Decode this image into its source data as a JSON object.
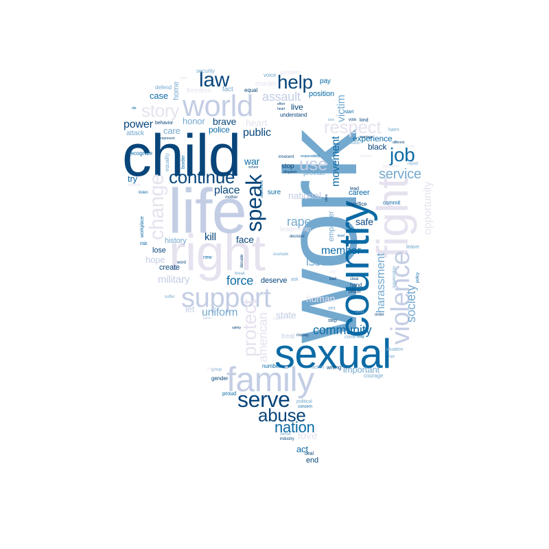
{
  "palette": {
    "dark": "#08457a",
    "blue": "#0b6aa5",
    "mid": "#2f86c0",
    "light": "#74a9cf",
    "pale": "#c3cde4",
    "faint": "#e6e2ef"
  },
  "words": [
    {
      "id": "work",
      "text": "work",
      "tone": "light"
    },
    {
      "id": "child",
      "text": "child",
      "tone": "dark"
    },
    {
      "id": "life",
      "text": "life",
      "tone": "pale"
    },
    {
      "id": "country",
      "text": "country",
      "tone": "blue"
    },
    {
      "id": "sexual",
      "text": "sexual",
      "tone": "blue"
    },
    {
      "id": "right",
      "text": "right",
      "tone": "faint"
    },
    {
      "id": "fight",
      "text": "fight",
      "tone": "faint"
    },
    {
      "id": "family",
      "text": "family",
      "tone": "pale"
    },
    {
      "id": "world",
      "text": "world",
      "tone": "pale"
    },
    {
      "id": "violence",
      "text": "violence",
      "tone": "pale"
    },
    {
      "id": "support",
      "text": "support",
      "tone": "pale"
    },
    {
      "id": "speak",
      "text": "speak",
      "tone": "dark"
    },
    {
      "id": "serve",
      "text": "serve",
      "tone": "dark"
    },
    {
      "id": "abuse",
      "text": "abuse",
      "tone": "dark"
    },
    {
      "id": "help",
      "text": "help",
      "tone": "dark"
    },
    {
      "id": "law",
      "text": "law",
      "tone": "dark"
    },
    {
      "id": "continue",
      "text": "continue",
      "tone": "dark"
    },
    {
      "id": "change",
      "text": "change",
      "tone": "faint"
    },
    {
      "id": "job",
      "text": "job",
      "tone": "blue"
    },
    {
      "id": "story",
      "text": "story",
      "tone": "faint"
    },
    {
      "id": "protect",
      "text": "protect",
      "tone": "faint"
    },
    {
      "id": "respect",
      "text": "respect",
      "tone": "faint"
    },
    {
      "id": "nation",
      "text": "nation",
      "tone": "blue"
    },
    {
      "id": "assault",
      "text": "assault",
      "tone": "pale"
    },
    {
      "id": "use",
      "text": "use",
      "tone": "pale"
    },
    {
      "id": "service",
      "text": "service",
      "tone": "light"
    },
    {
      "id": "community",
      "text": "community",
      "tone": "blue"
    },
    {
      "id": "harassment",
      "text": "harassment",
      "tone": "light"
    },
    {
      "id": "opportunity",
      "text": "opportunity",
      "tone": "faint"
    },
    {
      "id": "force",
      "text": "force",
      "tone": "blue"
    },
    {
      "id": "power",
      "text": "power",
      "tone": "dark"
    },
    {
      "id": "public",
      "text": "public",
      "tone": "dark"
    },
    {
      "id": "place",
      "text": "place",
      "tone": "dark"
    },
    {
      "id": "uniform",
      "text": "uniform",
      "tone": "light"
    },
    {
      "id": "issue",
      "text": "issue",
      "tone": "light"
    },
    {
      "id": "rape",
      "text": "rape",
      "tone": "light"
    },
    {
      "id": "american",
      "text": "american",
      "tone": "faint"
    },
    {
      "id": "society",
      "text": "society",
      "tone": "light"
    },
    {
      "id": "movement",
      "text": "movement",
      "tone": "blue"
    },
    {
      "id": "victim",
      "text": "victim",
      "tone": "light"
    },
    {
      "id": "member",
      "text": "member",
      "tone": "blue"
    },
    {
      "id": "love",
      "text": "love",
      "tone": "faint"
    },
    {
      "id": "brave",
      "text": "brave",
      "tone": "dark"
    },
    {
      "id": "police",
      "text": "police",
      "tone": "blue"
    },
    {
      "id": "honor",
      "text": "honor",
      "tone": "light"
    },
    {
      "id": "care",
      "text": "care",
      "tone": "light"
    },
    {
      "id": "heart",
      "text": "heart",
      "tone": "faint"
    },
    {
      "id": "military",
      "text": "military",
      "tone": "pale"
    },
    {
      "id": "kill",
      "text": "kill",
      "tone": "dark"
    },
    {
      "id": "face",
      "text": "face",
      "tone": "dark"
    },
    {
      "id": "war",
      "text": "war",
      "tone": "blue"
    },
    {
      "id": "national",
      "text": "national",
      "tone": "pale"
    },
    {
      "id": "human",
      "text": "human",
      "tone": "faint"
    },
    {
      "id": "state",
      "text": "state",
      "tone": "pale"
    },
    {
      "id": "safe",
      "text": "safe",
      "tone": "dark"
    },
    {
      "id": "act",
      "text": "act",
      "tone": "blue"
    },
    {
      "id": "important",
      "text": "important",
      "tone": "light"
    },
    {
      "id": "experience",
      "text": "experience",
      "tone": "blue"
    },
    {
      "id": "black",
      "text": "black",
      "tone": "dark"
    },
    {
      "id": "career",
      "text": "career",
      "tone": "blue"
    },
    {
      "id": "hope",
      "text": "hope",
      "tone": "pale"
    },
    {
      "id": "try",
      "text": "try",
      "tone": "blue"
    },
    {
      "id": "case",
      "text": "case",
      "tone": "blue"
    },
    {
      "id": "let",
      "text": "let",
      "tone": "pale"
    },
    {
      "id": "live",
      "text": "live",
      "tone": "dark"
    },
    {
      "id": "position",
      "text": "position",
      "tone": "blue"
    },
    {
      "id": "deserve",
      "text": "deserve",
      "tone": "dark"
    },
    {
      "id": "lose",
      "text": "lose",
      "tone": "dark"
    },
    {
      "id": "create",
      "text": "create",
      "tone": "dark"
    },
    {
      "id": "history",
      "text": "history",
      "tone": "light"
    },
    {
      "id": "end",
      "text": "end",
      "tone": "dark"
    },
    {
      "id": "home",
      "text": "home",
      "tone": "light"
    },
    {
      "id": "freedom",
      "text": "freedom",
      "tone": "faint"
    },
    {
      "id": "murder",
      "text": "murder",
      "tone": "faint"
    },
    {
      "id": "fact",
      "text": "fact",
      "tone": "light"
    },
    {
      "id": "pay",
      "text": "pay",
      "tone": "blue"
    },
    {
      "id": "empower",
      "text": "empower",
      "tone": "light"
    },
    {
      "id": "provide",
      "text": "provide",
      "tone": "light"
    },
    {
      "id": "sure",
      "text": "sure",
      "tone": "blue"
    },
    {
      "id": "stop",
      "text": "stop",
      "tone": "dark"
    },
    {
      "id": "attack",
      "text": "attack",
      "tone": "light"
    },
    {
      "id": "leadership",
      "text": "leadership",
      "tone": "faint"
    },
    {
      "id": "treat",
      "text": "treat",
      "tone": "pale"
    },
    {
      "id": "security",
      "text": "security",
      "tone": "light"
    },
    {
      "id": "voice",
      "text": "voice",
      "tone": "light"
    },
    {
      "id": "problem",
      "text": "problem",
      "tone": "faint"
    },
    {
      "id": "equal",
      "text": "equal",
      "tone": "dark"
    },
    {
      "id": "defend",
      "text": "defend",
      "tone": "light"
    },
    {
      "id": "understand",
      "text": "understand",
      "tone": "dark"
    },
    {
      "id": "recognize",
      "text": "recognize",
      "tone": "blue"
    },
    {
      "id": "behavior",
      "text": "behavior",
      "tone": "dark"
    },
    {
      "id": "equality",
      "text": "equality",
      "tone": "light"
    },
    {
      "id": "border",
      "text": "border",
      "tone": "blue"
    },
    {
      "id": "gender",
      "text": "gender",
      "tone": "dark"
    },
    {
      "id": "proud",
      "text": "proud",
      "tone": "blue"
    },
    {
      "id": "courage",
      "text": "courage",
      "tone": "light"
    },
    {
      "id": "wrong",
      "text": "wrong",
      "tone": "dark"
    },
    {
      "id": "action",
      "text": "action",
      "tone": "light"
    },
    {
      "id": "number",
      "text": "number",
      "tone": "blue"
    },
    {
      "id": "political",
      "text": "political",
      "tone": "light"
    },
    {
      "id": "concern",
      "text": "concern",
      "tone": "blue"
    },
    {
      "id": "sense",
      "text": "sense",
      "tone": "light"
    },
    {
      "id": "industry",
      "text": "industry",
      "tone": "dark"
    },
    {
      "id": "deal",
      "text": "deal",
      "tone": "dark"
    },
    {
      "id": "commit",
      "text": "commit",
      "tone": "blue"
    },
    {
      "id": "sacrifice",
      "text": "sacrifice",
      "tone": "dark"
    },
    {
      "id": "lead",
      "text": "lead",
      "tone": "dark"
    },
    {
      "id": "hand",
      "text": "hand",
      "tone": "dark"
    },
    {
      "id": "officer",
      "text": "officer",
      "tone": "dark"
    },
    {
      "id": "crime",
      "text": "crime",
      "tone": "light"
    },
    {
      "id": "stay",
      "text": "stay",
      "tone": "blue"
    },
    {
      "id": "situation",
      "text": "situation",
      "tone": "light"
    },
    {
      "id": "leave",
      "text": "leave",
      "tone": "light"
    },
    {
      "id": "risk",
      "text": "risk",
      "tone": "blue"
    },
    {
      "id": "workplace",
      "text": "workplace",
      "tone": "blue"
    },
    {
      "id": "word",
      "text": "word",
      "tone": "dark"
    },
    {
      "id": "new",
      "text": "new",
      "tone": "blue"
    },
    {
      "id": "decade",
      "text": "decade",
      "tone": "dark"
    },
    {
      "id": "break",
      "text": "break",
      "tone": "light"
    },
    {
      "id": "example",
      "text": "example",
      "tone": "light"
    },
    {
      "id": "ask",
      "text": "ask",
      "tone": "light"
    },
    {
      "id": "sex",
      "text": "sex",
      "tone": "light"
    },
    {
      "id": "step",
      "text": "step",
      "tone": "dark"
    },
    {
      "id": "money",
      "text": "money",
      "tone": "dark"
    },
    {
      "id": "death",
      "text": "death",
      "tone": "faint"
    },
    {
      "id": "decision",
      "text": "decision",
      "tone": "dark"
    },
    {
      "id": "innocent",
      "text": "innocent",
      "tone": "dark"
    },
    {
      "id": "allegation",
      "text": "allegation",
      "tone": "dark"
    },
    {
      "id": "responsibility",
      "text": "responsibility",
      "tone": "blue"
    },
    {
      "id": "school",
      "text": "school",
      "tone": "dark"
    },
    {
      "id": "department",
      "text": "department",
      "tone": "blue"
    },
    {
      "id": "mother",
      "text": "mother",
      "tone": "dark"
    },
    {
      "id": "suffer",
      "text": "suffer",
      "tone": "light"
    },
    {
      "id": "listen",
      "text": "listen",
      "tone": "blue"
    },
    {
      "id": "group",
      "text": "group",
      "tone": "light"
    },
    {
      "id": "kind",
      "text": "kind",
      "tone": "dark"
    },
    {
      "id": "start",
      "text": "start",
      "tone": "blue"
    },
    {
      "id": "vote",
      "text": "vote",
      "tone": "dark"
    },
    {
      "id": "marriage",
      "text": "marriage",
      "tone": "dark"
    },
    {
      "id": "different",
      "text": "different",
      "tone": "dark"
    },
    {
      "id": "harm",
      "text": "harm",
      "tone": "light"
    },
    {
      "id": "business",
      "text": "business",
      "tone": "faint"
    },
    {
      "id": "report",
      "text": "report",
      "tone": "light"
    },
    {
      "id": "criminal",
      "text": "criminal",
      "tone": "faint"
    },
    {
      "id": "policy",
      "text": "policy",
      "tone": "blue"
    },
    {
      "id": "organization",
      "text": "organization",
      "tone": "light"
    },
    {
      "id": "order",
      "text": "order",
      "tone": "dark"
    },
    {
      "id": "build",
      "text": "build",
      "tone": "light"
    },
    {
      "id": "clear",
      "text": "clear",
      "tone": "dark"
    },
    {
      "id": "bad",
      "text": "bad",
      "tone": "dark"
    },
    {
      "id": "city",
      "text": "city",
      "tone": "faint"
    },
    {
      "id": "effort",
      "text": "effort",
      "tone": "dark"
    },
    {
      "id": "heart2",
      "text": "heart",
      "tone": "dark"
    },
    {
      "id": "idea",
      "text": "idea",
      "tone": "light"
    },
    {
      "id": "represent",
      "text": "represent",
      "tone": "dark"
    },
    {
      "id": "die",
      "text": "die",
      "tone": "blue"
    },
    {
      "id": "allow",
      "text": "allow",
      "tone": "dark"
    },
    {
      "id": "level",
      "text": "level",
      "tone": "blue"
    },
    {
      "id": "reason",
      "text": "reason",
      "tone": "light"
    },
    {
      "id": "open",
      "text": "open",
      "tone": "faint"
    },
    {
      "id": "father",
      "text": "father",
      "tone": "pale"
    },
    {
      "id": "leader",
      "text": "leader",
      "tone": "faint"
    },
    {
      "id": "safety",
      "text": "safety",
      "tone": "dark"
    },
    {
      "id": "domestic",
      "text": "domestic",
      "tone": "faint"
    },
    {
      "id": "high",
      "text": "high",
      "tone": "light"
    },
    {
      "id": "play",
      "text": "play",
      "tone": "faint"
    }
  ]
}
